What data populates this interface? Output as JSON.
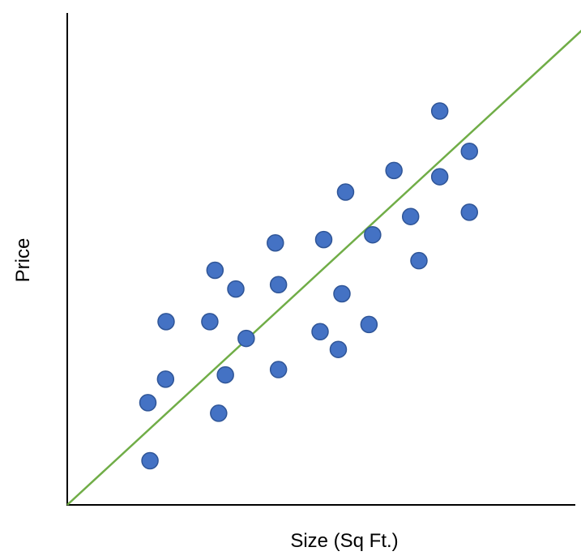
{
  "chart_data": {
    "type": "scatter",
    "title": "",
    "xlabel": "Size (Sq Ft.)",
    "ylabel": "Price",
    "xlim": [
      0,
      100
    ],
    "ylim": [
      0,
      100
    ],
    "grid": false,
    "legend": "none",
    "tick_labels": false,
    "colors": {
      "points": "#4472c4",
      "point_outline": "#2f5597",
      "trendline": "#70ad47",
      "axes": "#000000"
    },
    "series": [
      {
        "values": [
          {
            "x": 15.9,
            "y": 9.2
          },
          {
            "x": 15.5,
            "y": 21.3
          },
          {
            "x": 18.9,
            "y": 26.2
          },
          {
            "x": 19.0,
            "y": 38.2
          },
          {
            "x": 29.1,
            "y": 19.1
          },
          {
            "x": 30.4,
            "y": 27.1
          },
          {
            "x": 27.4,
            "y": 38.2
          },
          {
            "x": 28.4,
            "y": 48.9
          },
          {
            "x": 32.4,
            "y": 45.0
          },
          {
            "x": 34.4,
            "y": 34.7
          },
          {
            "x": 40.6,
            "y": 28.2
          },
          {
            "x": 40.6,
            "y": 45.9
          },
          {
            "x": 40.0,
            "y": 54.6
          },
          {
            "x": 48.6,
            "y": 36.1
          },
          {
            "x": 52.1,
            "y": 32.4
          },
          {
            "x": 52.8,
            "y": 44.0
          },
          {
            "x": 49.3,
            "y": 55.3
          },
          {
            "x": 58.0,
            "y": 37.6
          },
          {
            "x": 58.7,
            "y": 56.3
          },
          {
            "x": 53.5,
            "y": 65.2
          },
          {
            "x": 67.6,
            "y": 50.9
          },
          {
            "x": 66.0,
            "y": 60.1
          },
          {
            "x": 62.8,
            "y": 69.7
          },
          {
            "x": 71.6,
            "y": 68.4
          },
          {
            "x": 77.3,
            "y": 61.0
          },
          {
            "x": 71.6,
            "y": 82.1
          },
          {
            "x": 77.3,
            "y": 73.7
          }
        ]
      }
    ],
    "trendline": {
      "x": [
        0,
        100
      ],
      "y": [
        0,
        100
      ]
    }
  }
}
